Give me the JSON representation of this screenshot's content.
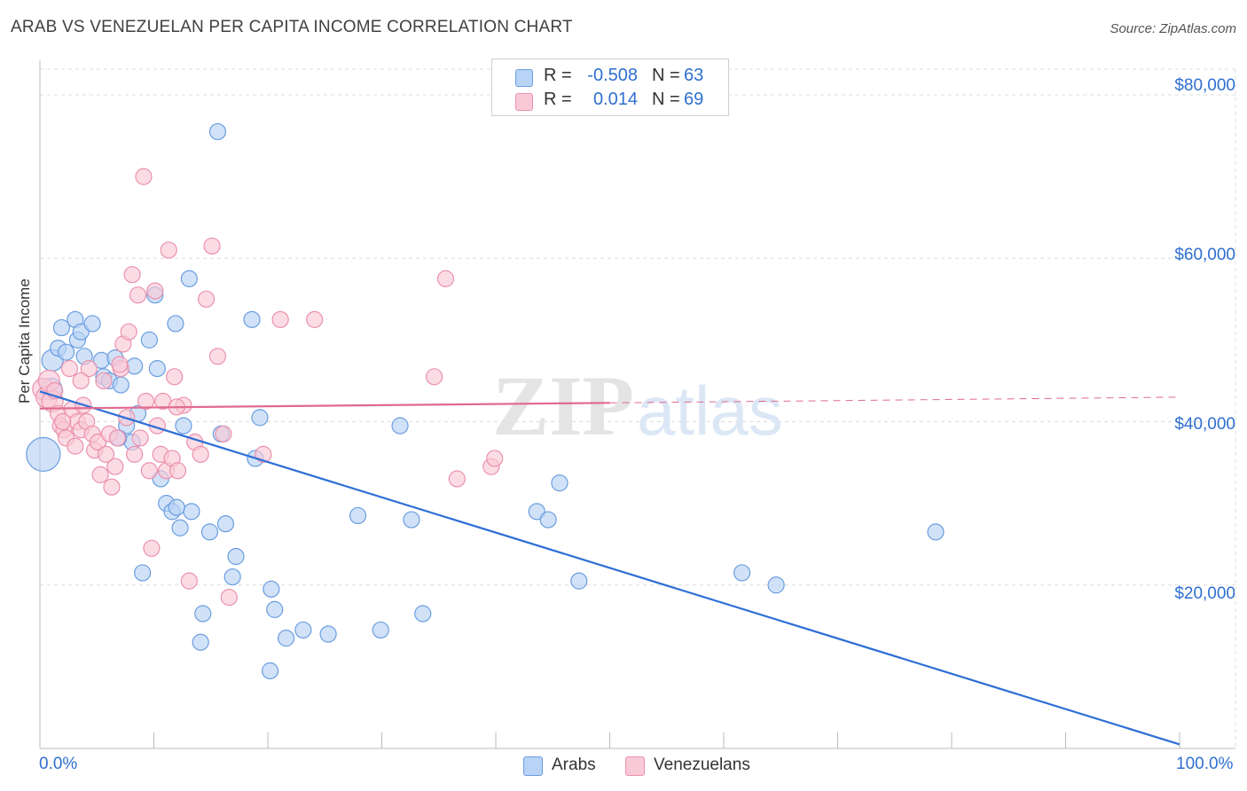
{
  "title": "ARAB VS VENEZUELAN PER CAPITA INCOME CORRELATION CHART",
  "source": "Source: ZipAtlas.com",
  "watermark": {
    "zip": "ZIP",
    "atlas": "atlas"
  },
  "legend": {
    "rows": [
      {
        "r_label": "R =",
        "r_value": "-0.508",
        "n_label": "N =",
        "n_value": "63"
      },
      {
        "r_label": "R =",
        "r_value": "0.014",
        "n_label": "N =",
        "n_value": "69"
      }
    ]
  },
  "bottom_legend": [
    "Arabs",
    "Venezuelans"
  ],
  "colors": {
    "arab_fill": "#b8d3f5",
    "arab_stroke": "#6a9de0",
    "arab_line": "#2e6fd6",
    "ven_fill": "#f9c9d7",
    "ven_stroke": "#eb91ad",
    "ven_line": "#e06a8e",
    "tick_label": "#2f6fd0",
    "grid": "#dcdcdc"
  },
  "chart_data": {
    "type": "scatter",
    "title": "ARAB VS VENEZUELAN PER CAPITA INCOME CORRELATION CHART",
    "xlabel": "",
    "ylabel": "Per Capita Income",
    "xlim": [
      0,
      100
    ],
    "ylim": [
      0,
      80000
    ],
    "x_tick_labels": [
      "0.0%",
      "100.0%"
    ],
    "y_ticks": [
      20000,
      40000,
      60000,
      80000
    ],
    "y_tick_labels": [
      "$20,000",
      "$40,000",
      "$60,000",
      "$80,000"
    ],
    "grid": true,
    "series": [
      {
        "name": "Arabs",
        "points": [
          [
            0.3,
            36000
          ],
          [
            1.1,
            47500
          ],
          [
            1.6,
            49000
          ],
          [
            1.9,
            51500
          ],
          [
            2.3,
            48500
          ],
          [
            3.1,
            52500
          ],
          [
            3.3,
            50000
          ],
          [
            3.6,
            51000
          ],
          [
            3.9,
            48000
          ],
          [
            4.6,
            52000
          ],
          [
            5.4,
            47500
          ],
          [
            5.6,
            45500
          ],
          [
            6.1,
            45000
          ],
          [
            6.6,
            47800
          ],
          [
            7.1,
            44500
          ],
          [
            7.6,
            39500
          ],
          [
            8.1,
            37500
          ],
          [
            8.3,
            46800
          ],
          [
            8.6,
            41000
          ],
          [
            9.6,
            50000
          ],
          [
            10.1,
            55500
          ],
          [
            10.3,
            46500
          ],
          [
            10.6,
            33000
          ],
          [
            11.1,
            30000
          ],
          [
            11.6,
            29000
          ],
          [
            11.9,
            52000
          ],
          [
            12.3,
            27000
          ],
          [
            12.6,
            39500
          ],
          [
            13.1,
            57500
          ],
          [
            13.3,
            29000
          ],
          [
            14.1,
            13000
          ],
          [
            14.3,
            16500
          ],
          [
            14.9,
            26500
          ],
          [
            15.6,
            75500
          ],
          [
            15.9,
            38500
          ],
          [
            16.3,
            27500
          ],
          [
            16.9,
            21000
          ],
          [
            17.2,
            23500
          ],
          [
            18.6,
            52500
          ],
          [
            18.9,
            35500
          ],
          [
            19.3,
            40500
          ],
          [
            20.3,
            19500
          ],
          [
            20.6,
            17000
          ],
          [
            20.2,
            9500
          ],
          [
            21.6,
            13500
          ],
          [
            23.1,
            14500
          ],
          [
            25.3,
            14000
          ],
          [
            27.9,
            28500
          ],
          [
            29.9,
            14500
          ],
          [
            31.6,
            39500
          ],
          [
            32.6,
            28000
          ],
          [
            33.6,
            16500
          ],
          [
            43.6,
            29000
          ],
          [
            44.6,
            28000
          ],
          [
            45.6,
            32500
          ],
          [
            47.3,
            20500
          ],
          [
            61.6,
            21500
          ],
          [
            64.6,
            20000
          ],
          [
            78.6,
            26500
          ],
          [
            6.9,
            38000
          ],
          [
            9.0,
            21500
          ],
          [
            12.0,
            29500
          ],
          [
            1.0,
            44000
          ]
        ]
      },
      {
        "name": "Venezuelans",
        "points": [
          [
            0.3,
            44000
          ],
          [
            0.6,
            43000
          ],
          [
            0.8,
            45000
          ],
          [
            1.1,
            42500
          ],
          [
            1.3,
            43800
          ],
          [
            1.6,
            41000
          ],
          [
            1.8,
            39500
          ],
          [
            2.1,
            39000
          ],
          [
            2.3,
            38000
          ],
          [
            2.6,
            46500
          ],
          [
            2.8,
            41500
          ],
          [
            3.1,
            37000
          ],
          [
            3.3,
            40000
          ],
          [
            3.6,
            39000
          ],
          [
            3.8,
            42000
          ],
          [
            4.1,
            40000
          ],
          [
            4.3,
            46500
          ],
          [
            4.6,
            38500
          ],
          [
            4.8,
            36500
          ],
          [
            5.1,
            37500
          ],
          [
            5.3,
            33500
          ],
          [
            5.6,
            45000
          ],
          [
            5.8,
            36000
          ],
          [
            6.1,
            38500
          ],
          [
            6.3,
            32000
          ],
          [
            6.6,
            34500
          ],
          [
            6.8,
            38000
          ],
          [
            7.1,
            46500
          ],
          [
            7.3,
            49500
          ],
          [
            7.6,
            40500
          ],
          [
            7.8,
            51000
          ],
          [
            8.1,
            58000
          ],
          [
            8.3,
            36000
          ],
          [
            8.6,
            55500
          ],
          [
            8.8,
            38000
          ],
          [
            9.1,
            70000
          ],
          [
            9.3,
            42500
          ],
          [
            9.6,
            34000
          ],
          [
            9.8,
            24500
          ],
          [
            10.1,
            56000
          ],
          [
            10.3,
            39500
          ],
          [
            10.6,
            36000
          ],
          [
            10.8,
            42500
          ],
          [
            11.1,
            34000
          ],
          [
            11.3,
            61000
          ],
          [
            11.6,
            35500
          ],
          [
            11.8,
            45500
          ],
          [
            12.1,
            34000
          ],
          [
            12.6,
            42000
          ],
          [
            13.1,
            20500
          ],
          [
            13.6,
            37500
          ],
          [
            14.1,
            36000
          ],
          [
            14.6,
            55000
          ],
          [
            15.1,
            61500
          ],
          [
            15.6,
            48000
          ],
          [
            16.1,
            38500
          ],
          [
            16.6,
            18500
          ],
          [
            19.6,
            36000
          ],
          [
            21.1,
            52500
          ],
          [
            24.1,
            52500
          ],
          [
            34.6,
            45500
          ],
          [
            35.6,
            57500
          ],
          [
            36.6,
            33000
          ],
          [
            39.6,
            34500
          ],
          [
            39.9,
            35500
          ],
          [
            3.6,
            45000
          ],
          [
            2.0,
            40000
          ],
          [
            7.0,
            47000
          ],
          [
            12.0,
            41800
          ]
        ]
      }
    ],
    "trendlines": [
      {
        "name": "Arabs",
        "x": [
          0,
          100
        ],
        "y": [
          43700,
          500
        ],
        "style": "solid"
      },
      {
        "name": "Venezuelans",
        "x": [
          0,
          50
        ],
        "y": [
          41600,
          42300
        ],
        "style": "solid"
      },
      {
        "name": "Venezuelans",
        "x": [
          50,
          100
        ],
        "y": [
          42300,
          43000
        ],
        "style": "dashed"
      }
    ]
  }
}
